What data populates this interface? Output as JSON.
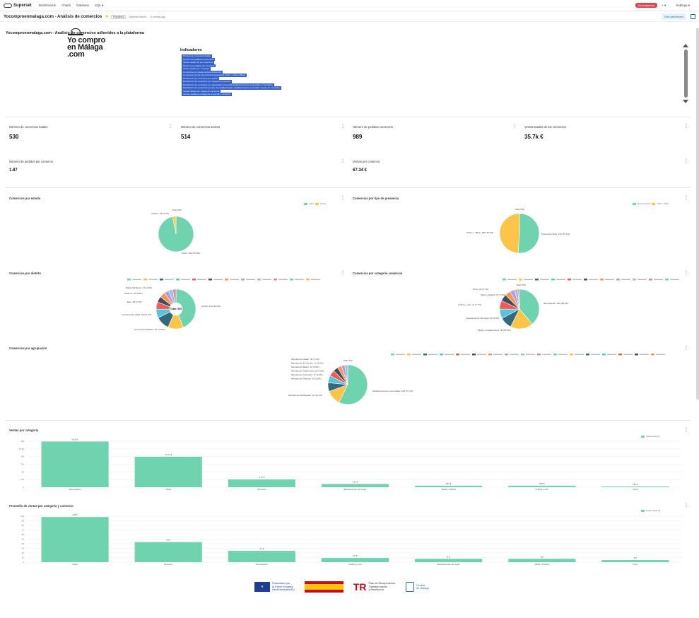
{
  "nav": {
    "logo": "Superset",
    "items": [
      "Dashboards",
      "Charts",
      "Datasets",
      "SQL ▾"
    ],
    "env_badge": "Development",
    "plus": "+ ▾",
    "settings": "Settings ▾"
  },
  "dashboard": {
    "title": "Yocomproenmalaga.com - Análisis de comercios",
    "status": "Published",
    "owner": "Superset Admin",
    "modified": "8 months ago",
    "edit_label": "Edit dashboard"
  },
  "header": {
    "title": "Yocomproenmalaga.com - Análisis de comercios adheridos a la plataforma",
    "brand_lines": [
      "Yo compro",
      "en Málaga",
      ".com"
    ],
    "indicators_title": "Indicadores",
    "indicators": [
      "Número de comercios totales",
      "Número de pedidos a comercios",
      "Ventas totales de los comercios",
      "Número de pedidos por comercio",
      "Ventas totales por comercio",
      "Comercios por estado (activos/inactivos)",
      "Comercios por tipo de presencia (presencia online / online+offline)",
      "Distribución de comercios por distrito",
      "Distribución de comercios por categoría comercial",
      "Distribución de comercios por agrupación comercial (establecimientos comerciales / mercados)",
      "Distribución de comercios por tipo de establecimiento (establecimiento comercial / puesto de mercado)",
      "Ventas totales por categoría comercial",
      "Ventas medias por categoría comercial y comercio"
    ]
  },
  "kpis": [
    {
      "label": "Número de comercios totales",
      "value": "530"
    },
    {
      "label": "Número de comercios activos",
      "value": "514"
    },
    {
      "label": "Número de pedidos comercios",
      "value": "989"
    },
    {
      "label": "Ventas totales de los comercios",
      "value": "35.7k €"
    },
    {
      "label": "Número de pedidos por comercio",
      "value": "1.87"
    },
    {
      "label": "Ventas por comercio",
      "value": "67.34 €"
    }
  ],
  "charts": {
    "estado": {
      "title": "Comercios por estado",
      "legend": [
        "Activo",
        "Inactivo"
      ],
      "labels": [
        "Total: 530",
        "Inactivo: 16 (3.0%)",
        "Activo: 514 (97.0%)"
      ]
    },
    "presencia": {
      "title": "Comercios por tipo de presencia",
      "legend": [
        "Presencia online",
        "Online + offline"
      ],
      "labels": [
        "Total: 530",
        "Presencia online: 271 (51.1%)",
        "Online + offline: 259 (48.9%)"
      ]
    },
    "distrito": {
      "title": "Comercios por distrito",
      "center": "Total: 530",
      "labels": [
        "Centro: 233 (44.0%)",
        "Cruz de Humilladero: 67 (12.6%)",
        "Carretera de Cádiz: 59 (11.1%)",
        "Este: 38 (7.2%)",
        "Teatinos: 31 (5.8%)",
        "Bailén-Miraflores: 26 (4.9%)"
      ]
    },
    "categoria": {
      "title": "Comercios por categoría comercial",
      "labels": [
        "Total: 530",
        "Alimentación: 206 (38.9%)",
        "Moda y complementos: 98 (18.5%)",
        "Equipamiento del hogar: 52 (9.8%)",
        "Cultura y ocio: 41 (7.7%)",
        "Salud y belleza: 37 (7.0%)",
        "Otros: 30 (5.7%)"
      ]
    },
    "agrupacion": {
      "title": "Comercios por agrupación",
      "labels": [
        "Total: 530",
        "Establecimientos comerciales: 304 (57.4%)",
        "Mercado de Atarazanas: 64 (12.1%)",
        "Mercado de Huelin: 38 (7.2%)",
        "Mercado de El Carmen: 31 (5.8%)",
        "Mercado de Bailén: 26 (4.9%)",
        "Mercado de Salamanca: 22 (4.2%)",
        "Mercado de Churriana: 17 (3.2%)",
        "Mercado de Teatinos: 15 (2.8%)"
      ]
    }
  },
  "bar_charts": [
    {
      "title": "Ventas por categoría",
      "legend": "Ventas totales (€)",
      "type": "bar",
      "categories": [
        "Alimentación",
        "Moda",
        "Servicios",
        "Equipamiento del hogar",
        "Salud y belleza",
        "Cultura y ocio",
        "Otros"
      ],
      "values": [
        15900,
        10600,
        2700,
        1100,
        500,
        500,
        250
      ],
      "value_labels": [
        "15.9k €",
        "10.6k €",
        "2.7k €",
        "1.1k €",
        "500 €",
        "500 €",
        "250 €"
      ],
      "yticks": [
        "0",
        "2.5k",
        "5k",
        "7.5k",
        "10k",
        "12.5k",
        "15k"
      ],
      "ylim": [
        0,
        16000
      ]
    },
    {
      "title": "Promedio de ventas por categoría y comercio",
      "legend": "Ventas medias (€)",
      "type": "bar",
      "categories": [
        "Moda",
        "Servicios",
        "Alimentación",
        "Cultura y ocio",
        "Equipamiento del hogar",
        "Salud y belleza",
        "Otros"
      ],
      "values": [
        108,
        48,
        27,
        10,
        8,
        8,
        5
      ],
      "value_labels": [
        "108 €",
        "48 €",
        "27 €",
        "10 €",
        "8 €",
        "8 €",
        "5 €"
      ],
      "yticks": [
        "0",
        "10",
        "20",
        "30",
        "40",
        "50",
        "60",
        "70",
        "80",
        "90",
        "100"
      ],
      "ylim": [
        0,
        110
      ]
    }
  ],
  "footer": {
    "eu": [
      "Financiado por",
      "la Unión Europea",
      "NextGenerationEU"
    ],
    "tr": [
      "Plan de Recuperación,",
      "Transformación",
      "y Resiliencia"
    ],
    "malaga": [
      "Ciudad",
      "de Málaga"
    ]
  },
  "colors": {
    "green": "#6fd3b0",
    "yellow": "#fcc549",
    "teal": "#34697d",
    "cyan": "#5ac4d8",
    "red": "#ef5a5a",
    "dark": "#444e5a",
    "orange": "#f89554",
    "accent": "#e04355",
    "link": "#3561c9"
  }
}
